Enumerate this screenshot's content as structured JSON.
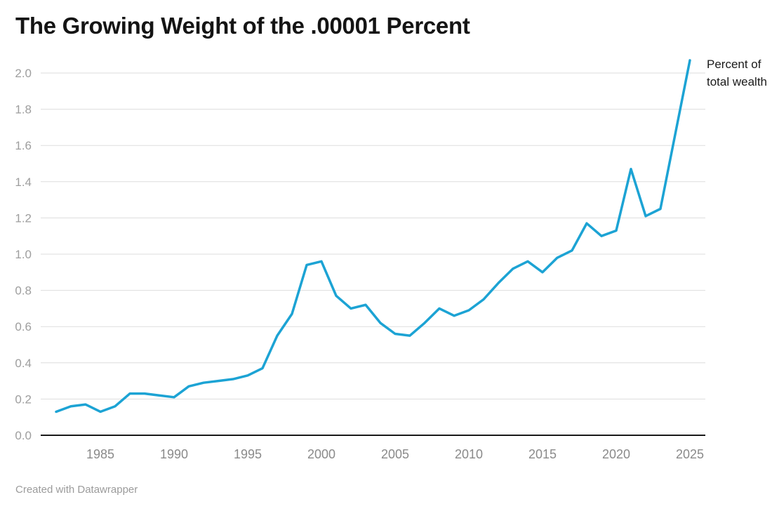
{
  "chart": {
    "title": "The Growing Weight of the .00001 Percent",
    "annotation": "Percent of total wealth",
    "footer": "Created with Datawrapper"
  },
  "chart_data": {
    "type": "line",
    "title": "The Growing Weight of the .00001 Percent",
    "series_label": "Percent of total wealth",
    "xlabel": "",
    "ylabel": "Percent of total wealth",
    "x": [
      1982,
      1983,
      1984,
      1985,
      1986,
      1987,
      1988,
      1989,
      1990,
      1991,
      1992,
      1993,
      1994,
      1995,
      1996,
      1997,
      1998,
      1999,
      2000,
      2001,
      2002,
      2003,
      2004,
      2005,
      2006,
      2007,
      2008,
      2009,
      2010,
      2011,
      2012,
      2013,
      2014,
      2015,
      2016,
      2017,
      2018,
      2019,
      2020,
      2021,
      2022,
      2023,
      2024,
      2025
    ],
    "values": [
      0.13,
      0.16,
      0.17,
      0.13,
      0.16,
      0.23,
      0.23,
      0.22,
      0.21,
      0.27,
      0.29,
      0.3,
      0.31,
      0.33,
      0.37,
      0.55,
      0.67,
      0.94,
      0.96,
      0.77,
      0.7,
      0.72,
      0.62,
      0.56,
      0.55,
      0.62,
      0.7,
      0.66,
      0.69,
      0.75,
      0.84,
      0.92,
      0.96,
      0.9,
      0.98,
      1.02,
      1.17,
      1.1,
      1.13,
      1.47,
      1.21,
      1.25,
      1.66,
      2.07
    ],
    "x_ticks": [
      1985,
      1990,
      1995,
      2000,
      2005,
      2010,
      2015,
      2020,
      2025
    ],
    "y_ticks": [
      0.0,
      0.2,
      0.4,
      0.6,
      0.8,
      1.0,
      1.2,
      1.4,
      1.6,
      1.8,
      2.0
    ],
    "xlim": [
      1982,
      2026
    ],
    "ylim": [
      0,
      2.1
    ],
    "grid": "horizontal",
    "legend_position": "annotation-top-right",
    "line_color": "#1ca3d4",
    "grid_color": "#dddddd",
    "axis_color": "#1a1a1a",
    "tick_color_y": "#9e9e9e",
    "tick_color_x": "#8a8a8a"
  }
}
